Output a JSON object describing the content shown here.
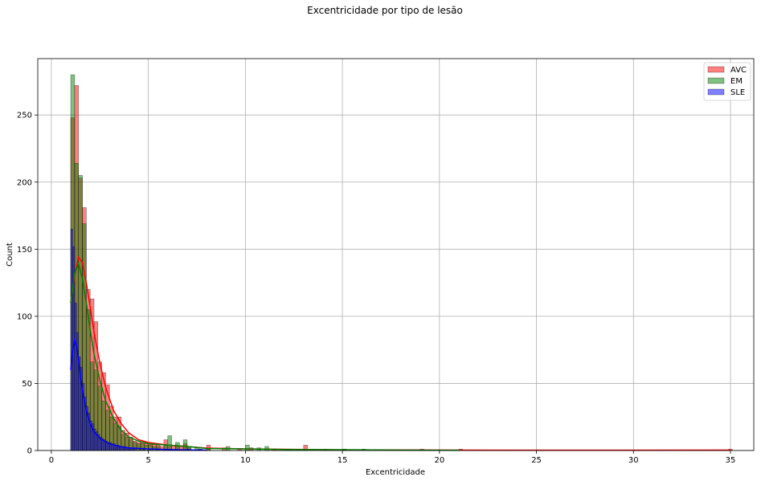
{
  "chart_data": {
    "type": "histogram",
    "title": "Excentricidade por tipo de lesão",
    "xlabel": "Excentricidade",
    "ylabel": "Count",
    "xlim": [
      -0.7,
      36.2
    ],
    "ylim": [
      0,
      292
    ],
    "xticks": [
      0,
      5,
      10,
      15,
      20,
      25,
      30,
      35
    ],
    "yticks": [
      0,
      50,
      100,
      150,
      200,
      250
    ],
    "grid": true,
    "legend_position": "top-right",
    "bin_width": 0.2,
    "series": [
      {
        "name": "AVC",
        "color": "#ff0000",
        "bins": [
          [
            1.0,
            248
          ],
          [
            1.2,
            272
          ],
          [
            1.4,
            203
          ],
          [
            1.6,
            181
          ],
          [
            1.8,
            120
          ],
          [
            2.0,
            113
          ],
          [
            2.2,
            96
          ],
          [
            2.4,
            66
          ],
          [
            2.6,
            58
          ],
          [
            2.8,
            49
          ],
          [
            3.0,
            33
          ],
          [
            3.2,
            25
          ],
          [
            3.4,
            25
          ],
          [
            3.6,
            15
          ],
          [
            3.8,
            13
          ],
          [
            4.0,
            10
          ],
          [
            4.2,
            7
          ],
          [
            4.4,
            6
          ],
          [
            4.6,
            6
          ],
          [
            4.8,
            5
          ],
          [
            5.0,
            5
          ],
          [
            5.2,
            5
          ],
          [
            5.4,
            4
          ],
          [
            5.6,
            3
          ],
          [
            5.8,
            8
          ],
          [
            6.0,
            3
          ],
          [
            6.2,
            4
          ],
          [
            6.4,
            3
          ],
          [
            6.6,
            3
          ],
          [
            6.8,
            5
          ],
          [
            7.0,
            2
          ],
          [
            7.6,
            1
          ],
          [
            8.0,
            4
          ],
          [
            8.8,
            2
          ],
          [
            9.6,
            1
          ],
          [
            10.2,
            2
          ],
          [
            11.4,
            1
          ],
          [
            12.0,
            1
          ],
          [
            12.6,
            1
          ],
          [
            13.0,
            4
          ],
          [
            14.0,
            1
          ],
          [
            15.0,
            1
          ],
          [
            19.0,
            1
          ],
          [
            34.9,
            1
          ]
        ],
        "kde": [
          [
            1.0,
            110
          ],
          [
            1.2,
            130
          ],
          [
            1.4,
            144
          ],
          [
            1.6,
            140
          ],
          [
            1.8,
            125
          ],
          [
            2.0,
            107
          ],
          [
            2.2,
            88
          ],
          [
            2.5,
            65
          ],
          [
            2.8,
            47
          ],
          [
            3.2,
            30
          ],
          [
            3.6,
            20
          ],
          [
            4.0,
            13
          ],
          [
            4.5,
            8
          ],
          [
            5.0,
            6
          ],
          [
            6.0,
            4
          ],
          [
            7.0,
            3
          ],
          [
            8.0,
            1.8
          ],
          [
            10.0,
            1.2
          ],
          [
            12.0,
            0.9
          ],
          [
            15.0,
            0.5
          ],
          [
            20.0,
            0.3
          ],
          [
            25.0,
            0.25
          ],
          [
            30.0,
            0.25
          ],
          [
            35.0,
            0.3
          ]
        ]
      },
      {
        "name": "EM",
        "color": "#008000",
        "bins": [
          [
            1.0,
            280
          ],
          [
            1.2,
            214
          ],
          [
            1.4,
            205
          ],
          [
            1.6,
            169
          ],
          [
            1.8,
            105
          ],
          [
            2.0,
            66
          ],
          [
            2.2,
            60
          ],
          [
            2.4,
            48
          ],
          [
            2.6,
            37
          ],
          [
            2.8,
            30
          ],
          [
            3.0,
            25
          ],
          [
            3.2,
            20
          ],
          [
            3.4,
            18
          ],
          [
            3.6,
            12
          ],
          [
            3.8,
            10
          ],
          [
            4.0,
            8
          ],
          [
            4.2,
            6
          ],
          [
            4.4,
            5
          ],
          [
            4.6,
            5
          ],
          [
            4.8,
            4
          ],
          [
            5.0,
            4
          ],
          [
            5.2,
            3
          ],
          [
            5.4,
            3
          ],
          [
            5.8,
            4
          ],
          [
            6.0,
            11
          ],
          [
            6.4,
            6
          ],
          [
            6.8,
            8
          ],
          [
            7.0,
            3
          ],
          [
            7.4,
            2
          ],
          [
            8.0,
            1
          ],
          [
            9.0,
            3
          ],
          [
            10.0,
            4
          ],
          [
            10.6,
            2
          ],
          [
            11.0,
            3
          ],
          [
            12.2,
            1
          ],
          [
            13.0,
            1
          ],
          [
            15.0,
            1
          ],
          [
            16.0,
            1
          ],
          [
            21.0,
            1
          ]
        ],
        "kde": [
          [
            1.0,
            110
          ],
          [
            1.2,
            132
          ],
          [
            1.4,
            139
          ],
          [
            1.6,
            128
          ],
          [
            1.8,
            110
          ],
          [
            2.0,
            90
          ],
          [
            2.2,
            72
          ],
          [
            2.5,
            52
          ],
          [
            2.8,
            37
          ],
          [
            3.2,
            24
          ],
          [
            3.6,
            15
          ],
          [
            4.0,
            10
          ],
          [
            4.5,
            7
          ],
          [
            5.0,
            5
          ],
          [
            6.0,
            4
          ],
          [
            7.0,
            3
          ],
          [
            8.0,
            1.5
          ],
          [
            10.0,
            1.2
          ],
          [
            12.0,
            0.8
          ],
          [
            15.0,
            0.6
          ],
          [
            18.0,
            0.3
          ],
          [
            21.0,
            0.2
          ]
        ]
      },
      {
        "name": "SLE",
        "color": "#0000ff",
        "bins": [
          [
            1.0,
            165
          ],
          [
            1.1,
            152
          ],
          [
            1.2,
            110
          ],
          [
            1.3,
            88
          ],
          [
            1.4,
            70
          ],
          [
            1.5,
            62
          ],
          [
            1.6,
            50
          ],
          [
            1.7,
            40
          ],
          [
            1.8,
            33
          ],
          [
            1.9,
            28
          ],
          [
            2.0,
            22
          ],
          [
            2.1,
            20
          ],
          [
            2.2,
            16
          ],
          [
            2.3,
            14
          ],
          [
            2.4,
            12
          ],
          [
            2.5,
            10
          ],
          [
            2.6,
            9
          ],
          [
            2.7,
            8
          ],
          [
            2.8,
            7
          ],
          [
            2.9,
            6
          ],
          [
            3.0,
            6
          ],
          [
            3.1,
            5
          ],
          [
            3.2,
            5
          ],
          [
            3.3,
            4
          ],
          [
            3.4,
            4
          ],
          [
            3.5,
            3
          ],
          [
            3.6,
            3
          ],
          [
            3.7,
            3
          ],
          [
            3.8,
            2
          ],
          [
            3.9,
            2
          ],
          [
            4.0,
            2
          ],
          [
            4.1,
            2
          ],
          [
            4.2,
            2
          ],
          [
            4.3,
            2
          ],
          [
            4.5,
            1
          ],
          [
            4.7,
            1
          ],
          [
            5.0,
            1
          ],
          [
            5.4,
            1
          ],
          [
            6.0,
            1
          ],
          [
            7.0,
            1
          ],
          [
            7.6,
            1
          ]
        ],
        "kde": [
          [
            1.0,
            60
          ],
          [
            1.1,
            75
          ],
          [
            1.2,
            82
          ],
          [
            1.3,
            78
          ],
          [
            1.4,
            68
          ],
          [
            1.5,
            55
          ],
          [
            1.6,
            45
          ],
          [
            1.8,
            30
          ],
          [
            2.0,
            20
          ],
          [
            2.2,
            14
          ],
          [
            2.5,
            9
          ],
          [
            3.0,
            5
          ],
          [
            3.5,
            3
          ],
          [
            4.0,
            2
          ],
          [
            5.0,
            1.2
          ],
          [
            6.0,
            0.8
          ],
          [
            7.0,
            0.5
          ],
          [
            8.0,
            0.3
          ]
        ]
      }
    ]
  }
}
